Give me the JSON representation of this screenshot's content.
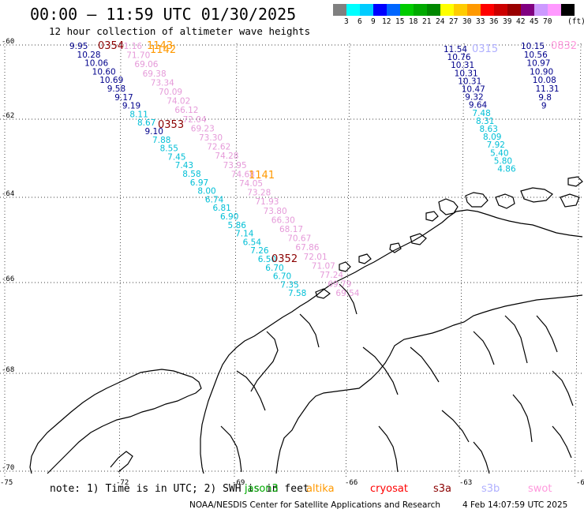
{
  "header": {
    "title": "00:00 — 11:59 UTC 01/30/2025",
    "subtitle": "12 hour collection of altimeter wave heights"
  },
  "legend": {
    "unit": "(ft)",
    "colors": [
      "#808080",
      "#00ffff",
      "#00ccff",
      "#0000ff",
      "#0066ff",
      "#00cc00",
      "#00aa00",
      "#008800",
      "#ffff00",
      "#ffcc00",
      "#ff9900",
      "#ff0000",
      "#cc0000",
      "#990000",
      "#800080",
      "#cc99ff",
      "#ff99ff",
      "#000000"
    ],
    "labels": [
      "3",
      "6",
      "9",
      "12",
      "15",
      "18",
      "21",
      "24",
      "27",
      "30",
      "33",
      "36",
      "39",
      "42",
      "45",
      "70"
    ]
  },
  "map": {
    "lat_labels": [
      "-60",
      "-62",
      "-64",
      "-66",
      "-68",
      "-70"
    ],
    "lon_labels": [
      "-75",
      "-72",
      "-69",
      "-66",
      "-63",
      "-60"
    ],
    "passes": [
      {
        "id": "0354",
        "color": "#8b0000"
      },
      {
        "id": "1143",
        "color": "#ff9900"
      },
      {
        "id": "1142",
        "color": "#ff9900"
      },
      {
        "id": "0353",
        "color": "#8b0000"
      },
      {
        "id": "1141",
        "color": "#ff9900"
      },
      {
        "id": "0352",
        "color": "#8b0000"
      },
      {
        "id": "0315",
        "color": "#b0b0ff"
      },
      {
        "id": "0832",
        "color": "#ff99dd"
      }
    ],
    "tracks": [
      {
        "name": "track-a",
        "values": [
          "9.95",
          "10.28",
          "10.06",
          "10.60",
          "10.69",
          "9.58",
          "9.17",
          "9.19",
          "8.11",
          "8.67",
          "9.10",
          "7.88",
          "8.55",
          "7.45",
          "7.43",
          "8.58",
          "6.97",
          "8.00",
          "6.74",
          "6.81",
          "6.90",
          "5.86",
          "7.14",
          "6.54",
          "7.26",
          "6.50",
          "6.70",
          "6.70",
          "7.35",
          "7.58"
        ],
        "colors": [
          "#00008b",
          "#00008b",
          "#00008b",
          "#00008b",
          "#00008b",
          "#00008b",
          "#00008b",
          "#00008b",
          "#00bfd6",
          "#00bfd6",
          "#00008b",
          "#00bfd6",
          "#00bfd6",
          "#00bfd6",
          "#00bfd6",
          "#00bfd6",
          "#00bfd6",
          "#00bfd6",
          "#00bfd6",
          "#00bfd6",
          "#00bfd6",
          "#00bfd6",
          "#00bfd6",
          "#00bfd6",
          "#00bfd6",
          "#00bfd6",
          "#00bfd6",
          "#00bfd6",
          "#00bfd6",
          "#00bfd6"
        ]
      },
      {
        "name": "track-b",
        "values": [
          "71.16",
          "71.70",
          "69.06",
          "69.38",
          "73.34",
          "70.09",
          "74.02",
          "66.12",
          "72.04",
          "69.23",
          "73.30",
          "72.62",
          "74.28",
          "73.95",
          "74.68",
          "74.05",
          "73.28",
          "71.93",
          "73.80",
          "66.30",
          "68.17",
          "70.67",
          "67.86",
          "72.01",
          "71.07",
          "77.24",
          "69.79",
          "69.54"
        ],
        "color": "#e59ad9"
      },
      {
        "name": "track-c",
        "values": [
          "11.54",
          "10.76",
          "10.31",
          "10.31",
          "10.31",
          "10.47",
          "9.32",
          "9.64",
          "7.48",
          "8.31",
          "8.63",
          "8.09",
          "7.92",
          "5.40",
          "5.80",
          "4.86"
        ],
        "colors": [
          "#00008b",
          "#00008b",
          "#00008b",
          "#00008b",
          "#00008b",
          "#00008b",
          "#00008b",
          "#00008b",
          "#00bfd6",
          "#00bfd6",
          "#00bfd6",
          "#00bfd6",
          "#00bfd6",
          "#00bfd6",
          "#00bfd6",
          "#00bfd6"
        ]
      },
      {
        "name": "track-d",
        "values": [
          "10.15",
          "10.56",
          "10.97",
          "10.90",
          "10.08",
          "11.31",
          "9.8",
          "9"
        ],
        "color": "#00008b"
      }
    ]
  },
  "footer": {
    "note": "note: 1) Time is in UTC; 2) SWH is in feet",
    "satellites": [
      {
        "name": "jason3",
        "color": "#00aa00"
      },
      {
        "name": "altika",
        "color": "#ff9900"
      },
      {
        "name": "cryosat",
        "color": "#ff0000"
      },
      {
        "name": "s3a",
        "color": "#8b0000"
      },
      {
        "name": "s3b",
        "color": "#b0b0ff"
      },
      {
        "name": "swot",
        "color": "#ff99dd"
      }
    ],
    "credit": "NOAA/NESDIS Center for Satellite Applications and Research",
    "timestamp": "4 Feb 14:07:59 UTC 2025"
  }
}
